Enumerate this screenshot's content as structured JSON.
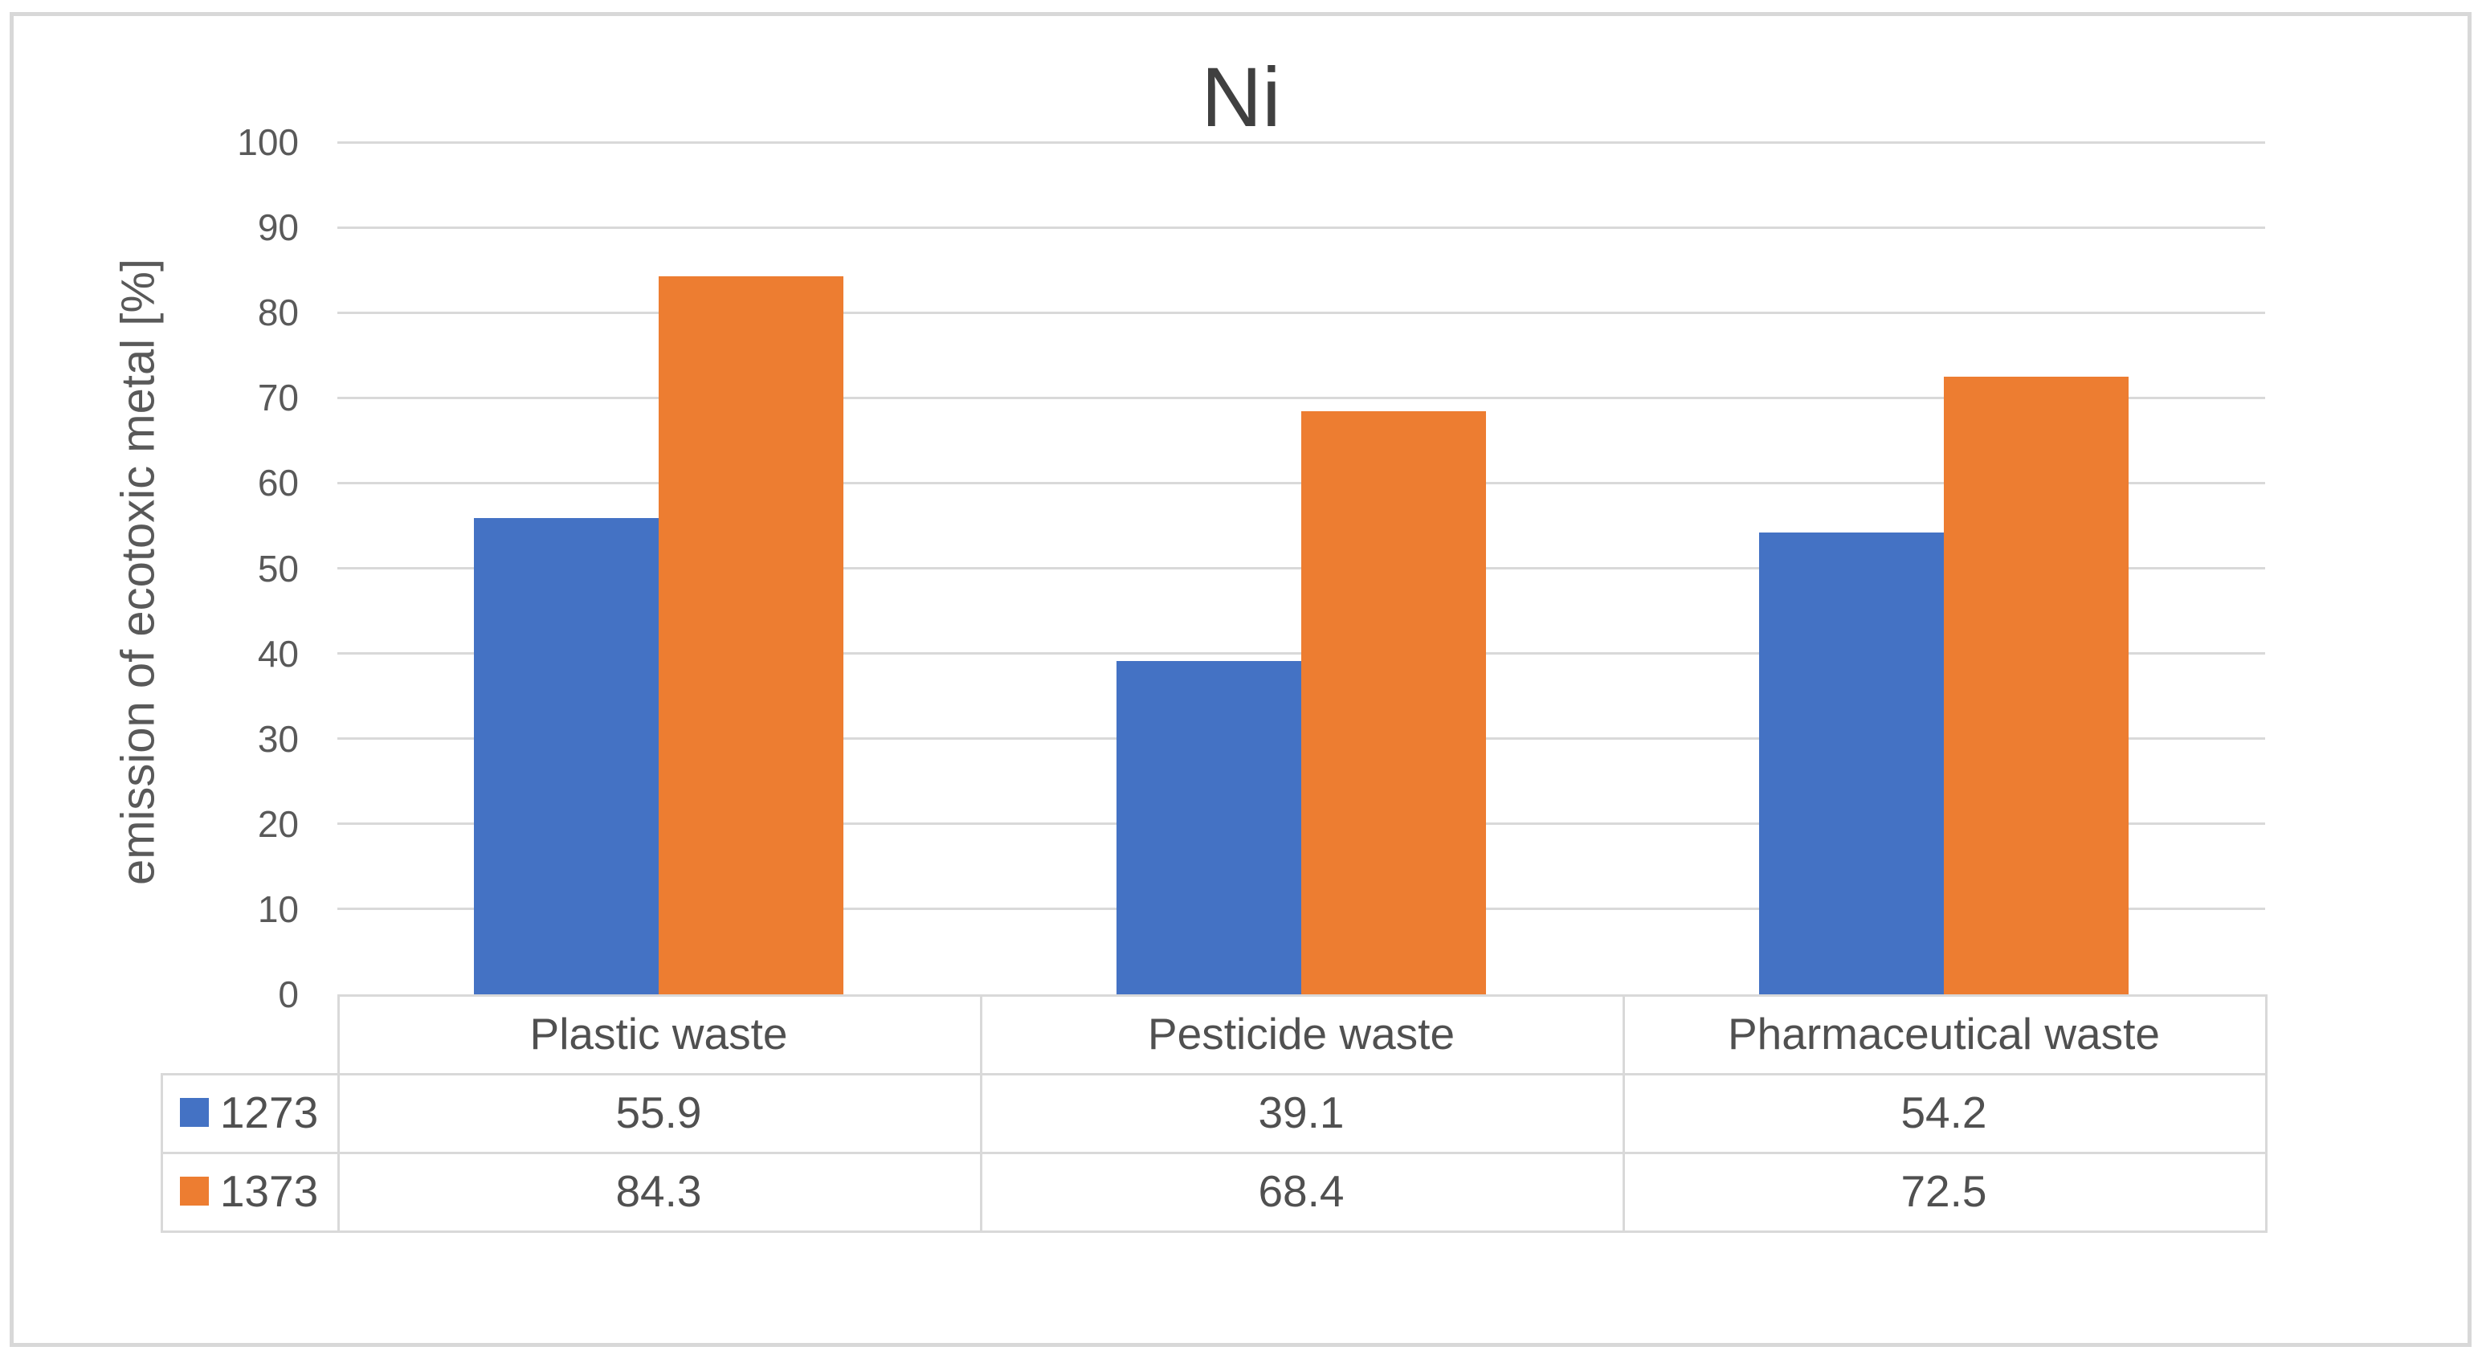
{
  "chart_data": {
    "type": "bar",
    "title": "Ni",
    "xlabel": "",
    "ylabel": "emission of ecotoxic metal [%]",
    "categories": [
      "Plastic waste",
      "Pesticide waste",
      "Pharmaceutical waste"
    ],
    "series": [
      {
        "name": "1273",
        "color": "#4472C4",
        "values": [
          55.9,
          39.1,
          54.2
        ]
      },
      {
        "name": "1373",
        "color": "#ED7D31",
        "values": [
          84.3,
          68.4,
          72.5
        ]
      }
    ],
    "ylim": [
      0,
      100
    ],
    "yticks": [
      0,
      10,
      20,
      30,
      40,
      50,
      60,
      70,
      80,
      90,
      100
    ],
    "grid": true,
    "legend_position": "data-table-left-keys"
  },
  "style": {
    "series_blue": "#4472C4",
    "series_orange": "#ED7D31",
    "title_color": "#404040",
    "axis_text_color": "#595959",
    "table_text_color": "#505050",
    "gridline_color": "#D9D9D9",
    "frame_color": "#D8D8D8"
  }
}
